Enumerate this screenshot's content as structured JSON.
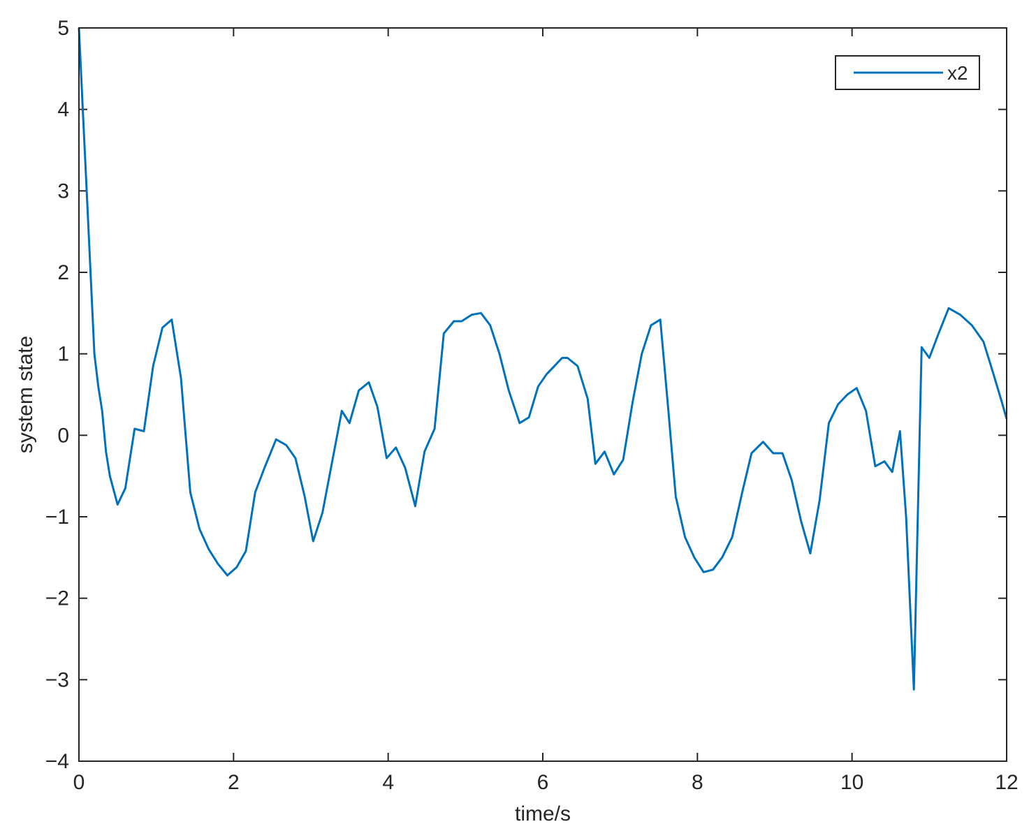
{
  "chart_data": {
    "type": "line",
    "xlabel": "time/s",
    "ylabel": "system state",
    "xlim": [
      0,
      12
    ],
    "ylim": [
      -4,
      5
    ],
    "xticks": [
      0,
      2,
      4,
      6,
      8,
      10,
      12
    ],
    "yticks": [
      -4,
      -3,
      -2,
      -1,
      0,
      1,
      2,
      3,
      4,
      5
    ],
    "grid": false,
    "legend_position": "top-right",
    "series": [
      {
        "name": "x2",
        "color": "#0072BD",
        "x": [
          0,
          0.05,
          0.1,
          0.15,
          0.2,
          0.25,
          0.3,
          0.35,
          0.4,
          0.5,
          0.6,
          0.72,
          0.84,
          0.96,
          1.08,
          1.2,
          1.32,
          1.44,
          1.56,
          1.68,
          1.8,
          1.92,
          2.04,
          2.16,
          2.28,
          2.4,
          2.55,
          2.68,
          2.8,
          2.92,
          3.03,
          3.15,
          3.27,
          3.4,
          3.5,
          3.62,
          3.75,
          3.86,
          3.98,
          4.1,
          4.22,
          4.35,
          4.47,
          4.6,
          4.72,
          4.85,
          4.95,
          5.08,
          5.2,
          5.32,
          5.44,
          5.56,
          5.7,
          5.82,
          5.94,
          6.05,
          6.15,
          6.25,
          6.32,
          6.45,
          6.58,
          6.68,
          6.8,
          6.92,
          7.04,
          7.16,
          7.28,
          7.4,
          7.52,
          7.62,
          7.72,
          7.84,
          7.96,
          8.08,
          8.2,
          8.32,
          8.45,
          8.58,
          8.7,
          8.85,
          8.98,
          9.1,
          9.22,
          9.34,
          9.46,
          9.58,
          9.7,
          9.82,
          9.94,
          10.06,
          10.18,
          10.3,
          10.42,
          10.52,
          10.62,
          10.7,
          10.8,
          10.9,
          11.0,
          11.12,
          11.25,
          11.4,
          11.55,
          11.7,
          11.82,
          11.94,
          12.0
        ],
        "values": [
          5.0,
          4.0,
          3.0,
          2.0,
          1.0,
          0.6,
          0.3,
          -0.2,
          -0.5,
          -0.85,
          -0.65,
          0.08,
          0.05,
          0.85,
          1.32,
          1.42,
          0.7,
          -0.7,
          -1.15,
          -1.4,
          -1.58,
          -1.72,
          -1.62,
          -1.42,
          -0.7,
          -0.4,
          -0.05,
          -0.12,
          -0.28,
          -0.75,
          -1.3,
          -0.95,
          -0.35,
          0.3,
          0.15,
          0.55,
          0.65,
          0.35,
          -0.28,
          -0.15,
          -0.4,
          -0.87,
          -0.2,
          0.08,
          1.25,
          1.4,
          1.4,
          1.48,
          1.5,
          1.35,
          1.0,
          0.55,
          0.15,
          0.22,
          0.6,
          0.75,
          0.85,
          0.95,
          0.95,
          0.85,
          0.45,
          -0.35,
          -0.2,
          -0.48,
          -0.3,
          0.4,
          1.0,
          1.35,
          1.42,
          0.35,
          -0.75,
          -1.25,
          -1.5,
          -1.68,
          -1.65,
          -1.5,
          -1.25,
          -0.7,
          -0.22,
          -0.08,
          -0.22,
          -0.22,
          -0.55,
          -1.05,
          -1.45,
          -0.8,
          0.15,
          0.38,
          0.5,
          0.58,
          0.3,
          -0.38,
          -0.32,
          -0.45,
          0.05,
          -1.0,
          -3.12,
          1.08,
          0.95,
          1.25,
          1.56,
          1.48,
          1.35,
          1.15,
          0.78,
          0.4,
          0.2
        ]
      }
    ]
  }
}
